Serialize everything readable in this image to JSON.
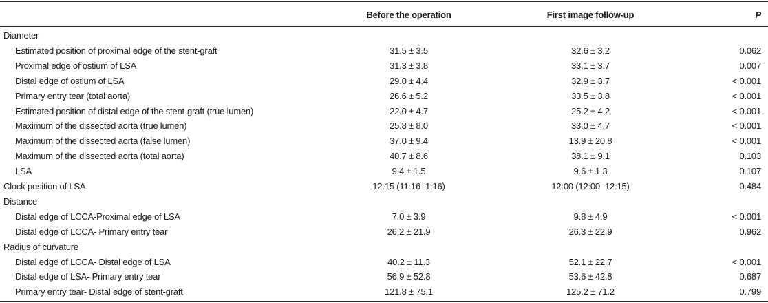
{
  "table": {
    "header": [
      "Before the operation",
      "First image follow-up",
      "P"
    ],
    "groups": [
      {
        "title": "Diameter",
        "rows": [
          [
            "Estimated position of proximal edge of the stent-graft",
            "31.5 ± 3.5",
            "32.6 ± 3.2",
            "0.062"
          ],
          [
            "Proximal edge of ostium of LSA",
            "31.3 ± 3.8",
            "33.1 ± 3.7",
            "0.007"
          ],
          [
            "Distal edge of ostium of LSA",
            "29.0 ± 4.4",
            "32.9 ± 3.7",
            "< 0.001"
          ],
          [
            "Primary entry tear (total aorta)",
            "26.6 ± 5.2",
            "33.5 ± 3.8",
            "< 0.001"
          ],
          [
            "Estimated position of distal edge of the stent-graft (true lumen)",
            "22.0 ± 4.7",
            "25.2 ± 4.2",
            "< 0.001"
          ],
          [
            "Maximum of the dissected aorta (true lumen)",
            "25.8 ± 8.0",
            "33.0 ± 4.7",
            "< 0.001"
          ],
          [
            "Maximum of the dissected aorta (false lumen)",
            "37.0 ± 9.4",
            "13.9 ± 20.8",
            "< 0.001"
          ],
          [
            "Maximum of the dissected aorta (total aorta)",
            "40.7 ± 8.6",
            "38.1 ± 9.1",
            "0.103"
          ],
          [
            "LSA",
            "9.4 ± 1.5",
            "9.6 ± 1.3",
            "0.107"
          ]
        ]
      },
      {
        "title": "Clock position of LSA",
        "cells": [
          "12:15 (11:16–1:16)",
          "12:00 (12:00–12:15)",
          "0.484"
        ]
      },
      {
        "title": "Distance",
        "rows": [
          [
            "Distal edge of LCCA-Proximal edge of LSA",
            "7.0 ± 3.9",
            "9.8 ± 4.9",
            "< 0.001"
          ],
          [
            "Distal edge of LCCA- Primary entry tear",
            "26.2 ± 21.9",
            "26.3 ± 22.9",
            "0.962"
          ]
        ]
      },
      {
        "title": "Radius of curvature",
        "rows": [
          [
            "Distal edge of LCCA- Distal edge of LSA",
            "40.2 ± 11.3",
            "52.1 ± 22.7",
            "< 0.001"
          ],
          [
            "Distal edge of LSA- Primary entry tear",
            "56.9 ± 52.8",
            "53.6 ± 42.8",
            "0.687"
          ],
          [
            "Primary entry tear- Distal edge of stent-graft",
            "121.8 ± 75.1",
            "125.2 ± 71.2",
            "0.799"
          ]
        ]
      }
    ]
  }
}
